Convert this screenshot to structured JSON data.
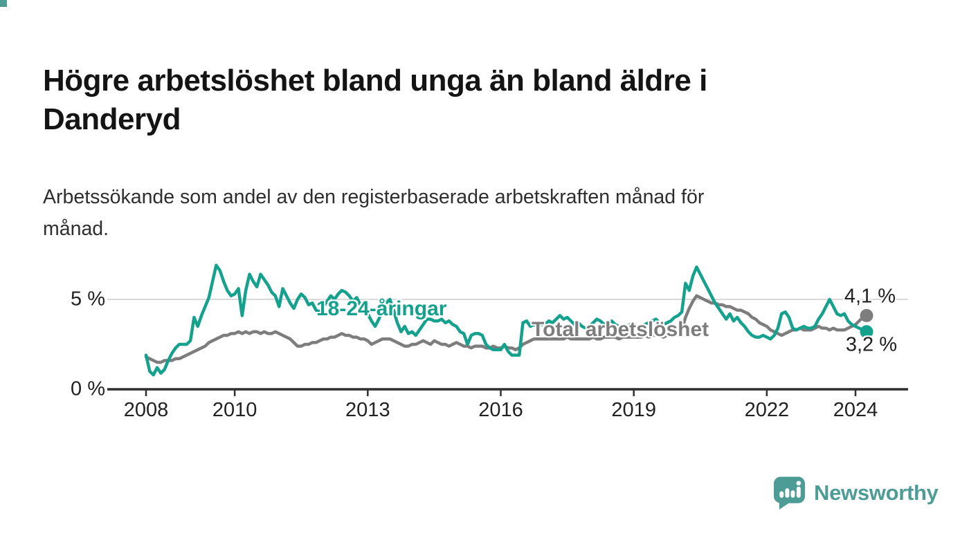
{
  "page": {
    "title_lines": [
      "Högre arbetslöshet bland unga än bland äldre i",
      "Danderyd"
    ],
    "subtitle_lines": [
      "Arbetssökande som andel av den registerbaserade arbetskraften månad för",
      "månad."
    ],
    "brand": {
      "name": "Newsworthy",
      "icon": "speech-bubble-bar-chart-icon",
      "color": "#4d9c95"
    }
  },
  "chart_data": {
    "type": "line",
    "title": "Högre arbetslöshet bland unga än bland äldre i Danderyd",
    "subtitle": "Arbetssökande som andel av den registerbaserade arbetskraften månad för månad.",
    "x_unit": "month",
    "x_start": "2008-01",
    "x_end": "2024-04",
    "x_tick_labels": [
      "2008",
      "2010",
      "2013",
      "2016",
      "2019",
      "2022",
      "2024"
    ],
    "x_tick_month_indices": [
      0,
      24,
      60,
      96,
      132,
      168,
      192
    ],
    "y_tick_labels": [
      "0 %",
      "5 %"
    ],
    "y_tick_values": [
      0,
      5
    ],
    "ylim": [
      0,
      7.5
    ],
    "grid_y_values": [
      5
    ],
    "grid_color": "#d9d9d9",
    "axis_color": "#2f2f2f",
    "legend_position": "inline-labels",
    "series": [
      {
        "name": "18-24-åringar",
        "color": "#14a18d",
        "end_label": "3,2 %",
        "end_value": 3.2,
        "values": [
          1.9,
          1.0,
          0.8,
          1.2,
          0.9,
          1.1,
          1.6,
          2.0,
          2.3,
          2.5,
          2.5,
          2.5,
          2.7,
          4.0,
          3.5,
          4.1,
          4.6,
          5.1,
          6.0,
          6.9,
          6.6,
          6.0,
          5.5,
          5.2,
          5.3,
          5.6,
          4.1,
          5.5,
          6.4,
          6.0,
          5.7,
          6.4,
          6.1,
          5.8,
          5.4,
          5.2,
          4.6,
          5.6,
          5.2,
          4.8,
          4.5,
          5.0,
          5.3,
          5.1,
          4.7,
          4.8,
          4.4,
          4.3,
          4.6,
          4.9,
          5.2,
          5.0,
          5.3,
          5.5,
          5.4,
          5.2,
          4.9,
          5.1,
          4.7,
          4.4,
          4.2,
          3.8,
          3.5,
          3.9,
          4.4,
          4.8,
          5.0,
          4.4,
          3.7,
          3.2,
          3.5,
          3.1,
          3.2,
          3.0,
          3.3,
          3.6,
          3.9,
          3.9,
          3.8,
          3.8,
          3.9,
          3.7,
          3.8,
          3.6,
          3.5,
          3.2,
          3.1,
          2.5,
          3.0,
          3.1,
          3.1,
          3.0,
          2.5,
          2.3,
          2.2,
          2.2,
          2.2,
          2.5,
          2.1,
          1.9,
          1.9,
          1.9,
          3.7,
          3.8,
          3.5,
          3.6,
          3.5,
          3.6,
          3.6,
          3.8,
          3.7,
          3.9,
          4.1,
          3.9,
          4.0,
          3.8,
          3.6,
          3.7,
          3.5,
          3.4,
          3.5,
          3.7,
          3.9,
          3.8,
          3.6,
          3.7,
          3.8,
          3.6,
          3.5,
          3.4,
          3.5,
          3.6,
          3.6,
          3.5,
          3.4,
          3.6,
          3.7,
          3.8,
          3.9,
          3.7,
          3.6,
          3.7,
          3.8,
          4.0,
          4.1,
          4.3,
          5.9,
          5.5,
          6.3,
          6.8,
          6.4,
          6.0,
          5.6,
          5.2,
          4.8,
          4.5,
          4.2,
          3.9,
          4.2,
          3.8,
          4.0,
          3.7,
          3.5,
          3.2,
          3.0,
          2.9,
          2.9,
          3.0,
          2.9,
          2.8,
          3.0,
          3.4,
          4.2,
          4.3,
          4.0,
          3.4,
          3.3,
          3.4,
          3.5,
          3.4,
          3.4,
          3.5,
          3.9,
          4.2,
          4.6,
          5.0,
          4.6,
          4.2,
          4.1,
          4.2,
          3.8,
          3.6,
          3.5,
          3.4,
          3.3,
          3.2
        ]
      },
      {
        "name": "Total arbetslöshet",
        "color": "#7d7d7d",
        "end_label": "4,1 %",
        "end_value": 4.1,
        "values": [
          1.8,
          1.7,
          1.6,
          1.5,
          1.5,
          1.6,
          1.6,
          1.6,
          1.7,
          1.7,
          1.8,
          1.9,
          2.0,
          2.1,
          2.2,
          2.3,
          2.4,
          2.6,
          2.7,
          2.8,
          2.9,
          3.0,
          3.0,
          3.1,
          3.1,
          3.2,
          3.1,
          3.2,
          3.1,
          3.2,
          3.2,
          3.1,
          3.2,
          3.1,
          3.1,
          3.2,
          3.1,
          3.0,
          2.9,
          2.8,
          2.6,
          2.4,
          2.4,
          2.5,
          2.5,
          2.6,
          2.6,
          2.7,
          2.8,
          2.8,
          2.9,
          2.9,
          3.0,
          3.1,
          3.0,
          3.0,
          2.9,
          2.9,
          2.8,
          2.8,
          2.7,
          2.5,
          2.6,
          2.7,
          2.8,
          2.8,
          2.8,
          2.7,
          2.6,
          2.5,
          2.4,
          2.4,
          2.5,
          2.5,
          2.6,
          2.7,
          2.6,
          2.5,
          2.7,
          2.6,
          2.5,
          2.5,
          2.4,
          2.5,
          2.6,
          2.5,
          2.4,
          2.4,
          2.3,
          2.4,
          2.4,
          2.4,
          2.3,
          2.3,
          2.4,
          2.3,
          2.3,
          2.4,
          2.3,
          2.3,
          2.2,
          2.3,
          2.5,
          2.6,
          2.7,
          2.8,
          2.8,
          2.8,
          2.8,
          2.8,
          2.8,
          2.8,
          2.8,
          2.8,
          2.9,
          2.8,
          2.8,
          2.8,
          2.8,
          2.8,
          2.8,
          2.9,
          2.8,
          2.8,
          2.9,
          2.9,
          2.9,
          2.9,
          2.8,
          2.9,
          2.9,
          2.9,
          2.9,
          2.9,
          2.9,
          3.0,
          2.9,
          3.0,
          3.0,
          3.0,
          2.9,
          3.0,
          3.0,
          3.1,
          3.2,
          3.3,
          4.0,
          4.5,
          4.9,
          5.2,
          5.1,
          5.0,
          4.9,
          4.8,
          4.8,
          4.7,
          4.7,
          4.6,
          4.6,
          4.5,
          4.4,
          4.4,
          4.3,
          4.2,
          4.0,
          3.9,
          3.7,
          3.6,
          3.5,
          3.3,
          3.2,
          3.1,
          3.0,
          3.1,
          3.2,
          3.3,
          3.3,
          3.4,
          3.3,
          3.3,
          3.3,
          3.4,
          3.5,
          3.4,
          3.4,
          3.3,
          3.4,
          3.3,
          3.3,
          3.3,
          3.4,
          3.5,
          3.6,
          3.8,
          4.0,
          4.1
        ]
      }
    ]
  }
}
